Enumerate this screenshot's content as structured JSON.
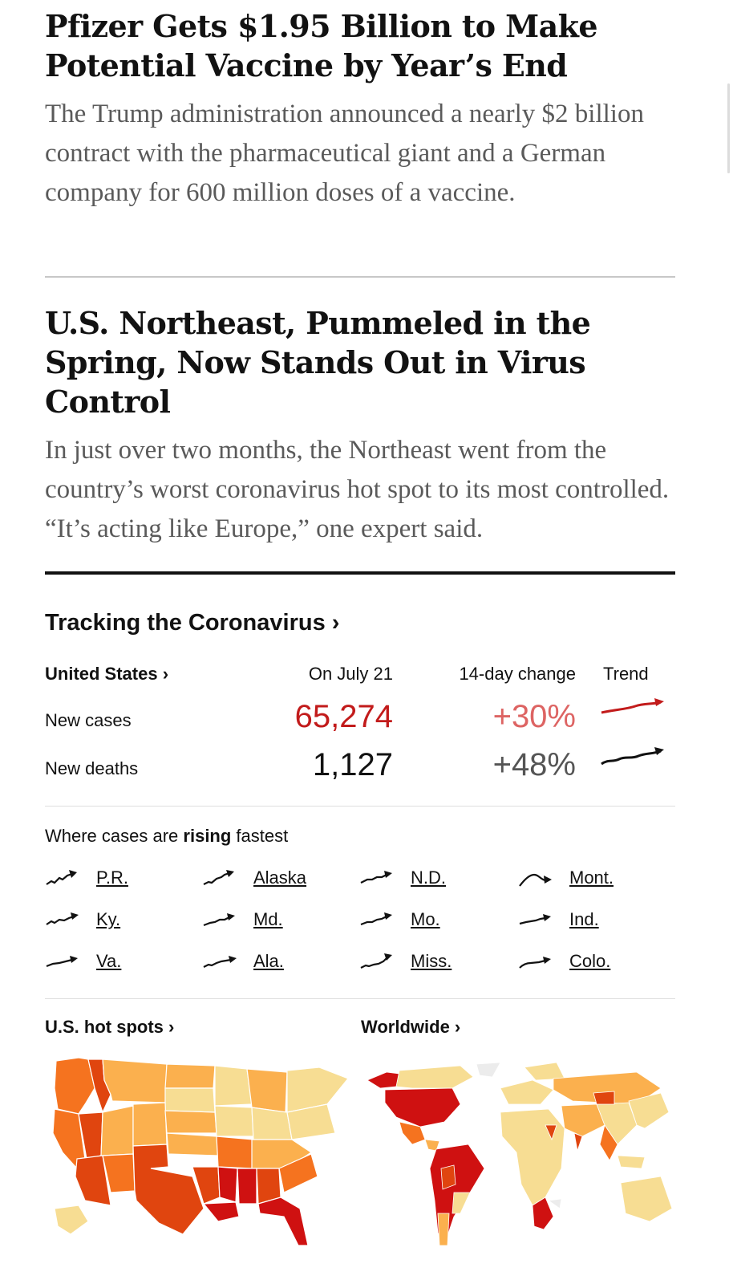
{
  "stories": [
    {
      "headline": "Pfizer Gets $1.95 Billion to Make Potential Vaccine by Year’s End",
      "summary": "The Trump administration announced a nearly $2 billion contract with the pharmaceutical giant and a German company for 600 million doses of a vaccine."
    },
    {
      "headline": "U.S. Northeast, Pummeled in the Spring, Now Stands Out in Virus Control",
      "summary": "In just over two months, the Northeast went from the country’s worst coronavirus hot spot to its most controlled. “It’s acting like Europe,” one expert said."
    }
  ],
  "tracker": {
    "title": "Tracking the Coronavirus ›",
    "region_link": "United States ›",
    "date_header": "On July 21",
    "change_header": "14-day change",
    "trend_header": "Trend",
    "rows": [
      {
        "label": "New cases",
        "value": "65,274",
        "change": "+30%",
        "color": "#c21b1b",
        "change_color": "#dd6463"
      },
      {
        "label": "New deaths",
        "value": "1,127",
        "change": "+48%",
        "color": "#121212",
        "change_color": "#555555"
      }
    ],
    "rising": {
      "prefix": "Where cases are ",
      "emphasis": "rising",
      "suffix": " fastest",
      "places": [
        "P.R.",
        "Alaska",
        "N.D.",
        "Mont.",
        "Ky.",
        "Md.",
        "Mo.",
        "Ind.",
        "Va.",
        "Ala.",
        "Miss.",
        "Colo."
      ]
    },
    "maps": {
      "us_label": "U.S. hot spots ›",
      "world_label": "Worldwide ›"
    }
  },
  "colors": {
    "heat_low": "#f7dd93",
    "heat_mid": "#fbb04e",
    "heat_high": "#f5731f",
    "heat_very_high": "#e0450f",
    "heat_max": "#cf1111"
  }
}
